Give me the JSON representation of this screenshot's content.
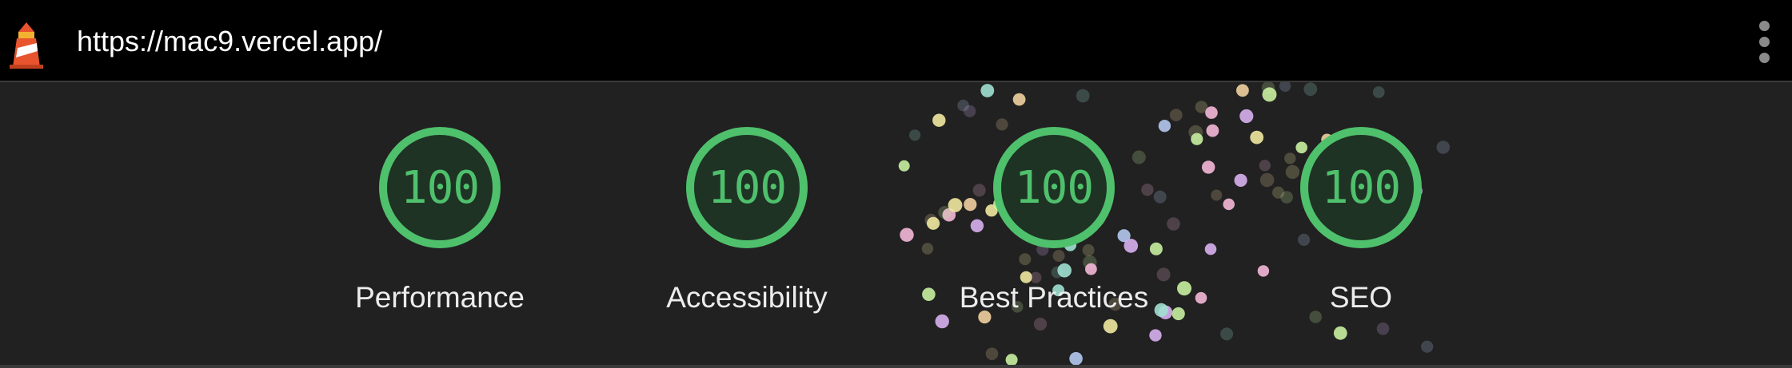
{
  "browser": {
    "url": "https://mac9.vercel.app/",
    "logo_icon": "lighthouse-icon",
    "menu_icon": "kebab-menu-icon"
  },
  "scores": [
    {
      "value": "100",
      "label": "Performance"
    },
    {
      "value": "100",
      "label": "Accessibility"
    },
    {
      "value": "100",
      "label": "Best Practices"
    },
    {
      "value": "100",
      "label": "SEO"
    }
  ],
  "colors": {
    "pass": "#4fc06c",
    "gauge_bg": "#1e3324",
    "panel_bg": "#212121",
    "topbar_bg": "#000000",
    "confetti": [
      "#c8f0a0",
      "#f4b8d8",
      "#b4c8f0",
      "#f0d0a0",
      "#a0e0d0",
      "#d8b0f0",
      "#f0e8a0"
    ]
  }
}
